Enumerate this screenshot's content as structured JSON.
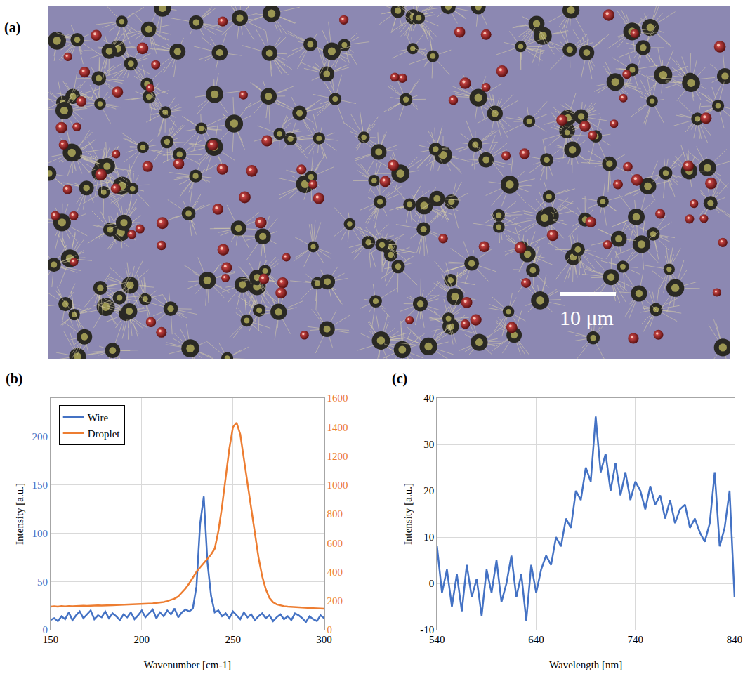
{
  "image_panel": {
    "panel": "(a)",
    "scale_bar": "10 μm"
  },
  "chart_data": [
    {
      "type": "line",
      "panel": "(b)",
      "x_label": "Wavenumber [cm-1]",
      "y_label": "Intensity [a.u.]",
      "xlim": [
        150,
        300
      ],
      "xticks": [
        150,
        200,
        250,
        300
      ],
      "ylim": [
        0,
        240
      ],
      "yticks": [
        0,
        50,
        100,
        150,
        200
      ],
      "y2lim": [
        0,
        1600
      ],
      "y2ticks": [
        0,
        200,
        400,
        600,
        800,
        1000,
        1200,
        1400,
        1600
      ],
      "grid": true,
      "legend": "upper left",
      "x": [
        150,
        152,
        154,
        156,
        158,
        160,
        162,
        164,
        166,
        168,
        170,
        172,
        174,
        176,
        178,
        180,
        182,
        184,
        186,
        188,
        190,
        192,
        194,
        196,
        198,
        200,
        202,
        204,
        206,
        208,
        210,
        212,
        214,
        216,
        218,
        220,
        222,
        224,
        226,
        228,
        230,
        232,
        234,
        236,
        238,
        240,
        242,
        244,
        246,
        248,
        250,
        252,
        254,
        256,
        258,
        260,
        262,
        264,
        266,
        268,
        270,
        272,
        274,
        276,
        278,
        280,
        282,
        284,
        286,
        288,
        290,
        292,
        294,
        296,
        298,
        300
      ],
      "series": [
        {
          "name": "Wire",
          "color": "#4472c4",
          "values": [
            10,
            12,
            9,
            14,
            11,
            18,
            10,
            15,
            19,
            12,
            16,
            20,
            11,
            15,
            13,
            19,
            12,
            17,
            14,
            10,
            16,
            13,
            18,
            11,
            15,
            20,
            13,
            17,
            21,
            12,
            18,
            14,
            20,
            16,
            22,
            13,
            18,
            21,
            19,
            22,
            45,
            110,
            138,
            70,
            35,
            18,
            20,
            14,
            17,
            12,
            19,
            15,
            11,
            18,
            13,
            16,
            10,
            14,
            17,
            12,
            15,
            9,
            13,
            16,
            11,
            14,
            10,
            17,
            15,
            12,
            8,
            14,
            11,
            9,
            15,
            12
          ]
        },
        {
          "name": "Droplet",
          "color": "#ed7d31",
          "axis": "y2",
          "values": [
            160,
            162,
            160,
            163,
            161,
            164,
            163,
            165,
            164,
            166,
            165,
            167,
            166,
            168,
            167,
            169,
            170,
            170,
            171,
            172,
            172,
            173,
            174,
            175,
            176,
            177,
            178,
            180,
            182,
            185,
            188,
            192,
            198,
            205,
            215,
            230,
            255,
            285,
            320,
            360,
            400,
            430,
            460,
            490,
            520,
            560,
            680,
            850,
            1050,
            1250,
            1400,
            1430,
            1350,
            1180,
            1000,
            820,
            650,
            500,
            370,
            280,
            220,
            190,
            175,
            168,
            163,
            160,
            158,
            156,
            155,
            153,
            152,
            150,
            149,
            148,
            147,
            146
          ]
        }
      ]
    },
    {
      "type": "line",
      "panel": "(c)",
      "x_label": "Wavelength [nm]",
      "y_label": "Intensity [a.u.]",
      "xlim": [
        540,
        840
      ],
      "xticks": [
        540,
        640,
        740,
        840
      ],
      "ylim": [
        -10,
        40
      ],
      "yticks": [
        -10,
        0,
        10,
        20,
        30,
        40
      ],
      "grid": true,
      "x": [
        540,
        545,
        550,
        555,
        560,
        565,
        570,
        575,
        580,
        585,
        590,
        595,
        600,
        605,
        610,
        615,
        620,
        625,
        630,
        635,
        640,
        645,
        650,
        655,
        660,
        665,
        670,
        675,
        680,
        685,
        690,
        695,
        700,
        705,
        710,
        715,
        720,
        725,
        730,
        735,
        740,
        745,
        750,
        755,
        760,
        765,
        770,
        775,
        780,
        785,
        790,
        795,
        800,
        805,
        810,
        815,
        820,
        825,
        830,
        835,
        840
      ],
      "series": [
        {
          "color": "#4472c4",
          "values": [
            8,
            -2,
            3,
            -5,
            2,
            -6,
            4,
            -3,
            1,
            -7,
            3,
            -2,
            5,
            -4,
            0,
            6,
            -3,
            2,
            -8,
            4,
            -2,
            3,
            6,
            4,
            10,
            8,
            14,
            12,
            20,
            18,
            25,
            22,
            36,
            24,
            28,
            20,
            26,
            19,
            24,
            18,
            22,
            20,
            16,
            21,
            17,
            19,
            14,
            18,
            13,
            16,
            17,
            12,
            14,
            11,
            9,
            13,
            24,
            8,
            12,
            20,
            -3
          ]
        }
      ]
    }
  ]
}
